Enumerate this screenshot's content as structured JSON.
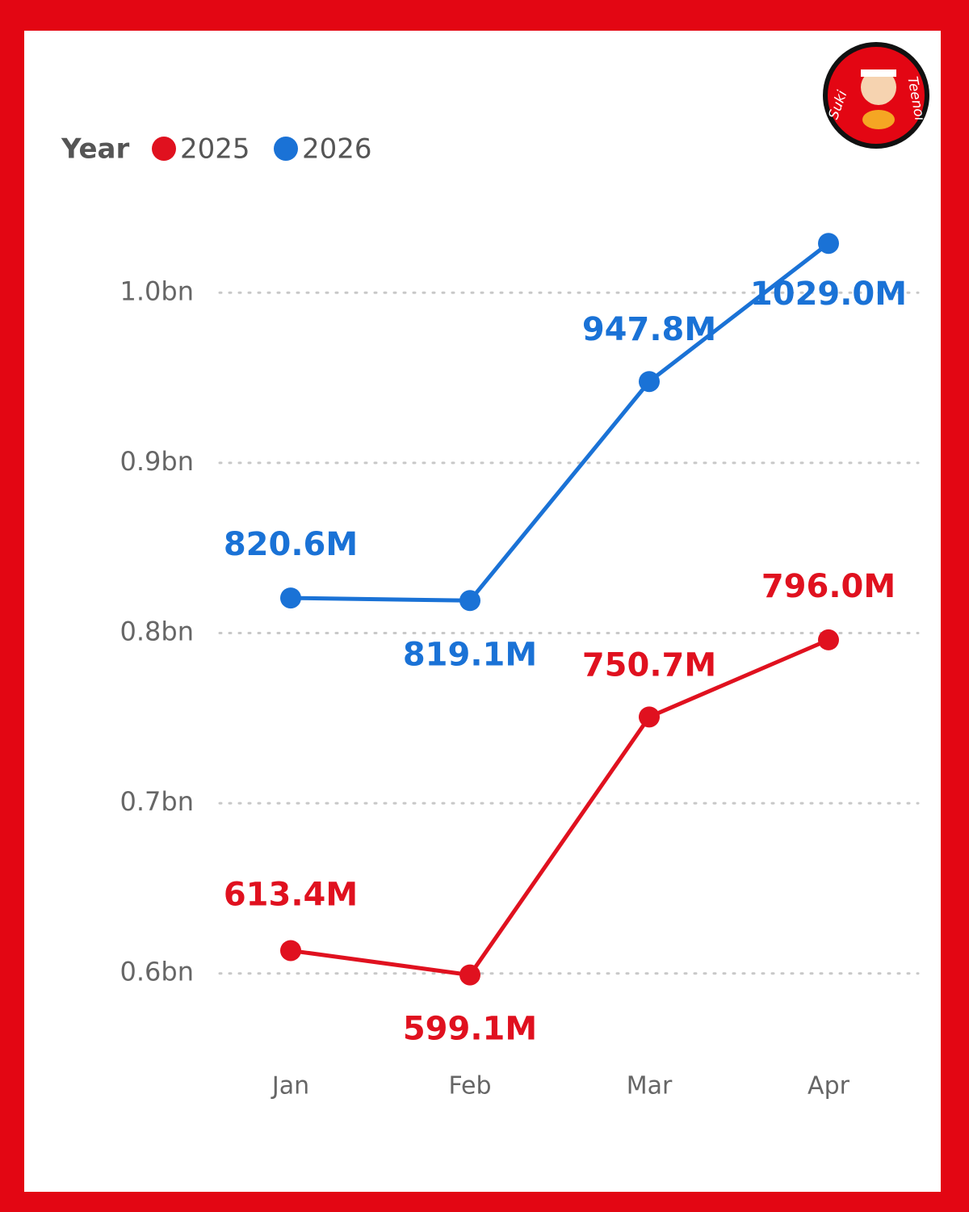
{
  "chart_data": {
    "type": "line",
    "legend_title": "Year",
    "logo_text": [
      "Suki",
      "Teenoi"
    ],
    "categories": [
      "Jan",
      "Feb",
      "Mar",
      "Apr"
    ],
    "series": [
      {
        "name": "2025",
        "color": "#e0111f",
        "values": [
          613400000,
          599100000,
          750700000,
          796000000
        ],
        "value_labels": [
          "613.4M",
          "599.1M",
          "750.7M",
          "796.0M"
        ]
      },
      {
        "name": "2026",
        "color": "#1a72d6",
        "values": [
          820600000,
          819100000,
          947800000,
          1029000000
        ],
        "value_labels": [
          "820.6M",
          "819.1M",
          "947.8M",
          "1029.0M"
        ]
      }
    ],
    "ylim": [
      550000000,
      1050000000
    ],
    "yticks": [
      {
        "value": 600000000,
        "label": "0.6bn"
      },
      {
        "value": 700000000,
        "label": "0.7bn"
      },
      {
        "value": 800000000,
        "label": "0.8bn"
      },
      {
        "value": 900000000,
        "label": "0.9bn"
      },
      {
        "value": 1000000000,
        "label": "1.0bn"
      }
    ],
    "grid": true,
    "legend": "top-left"
  }
}
